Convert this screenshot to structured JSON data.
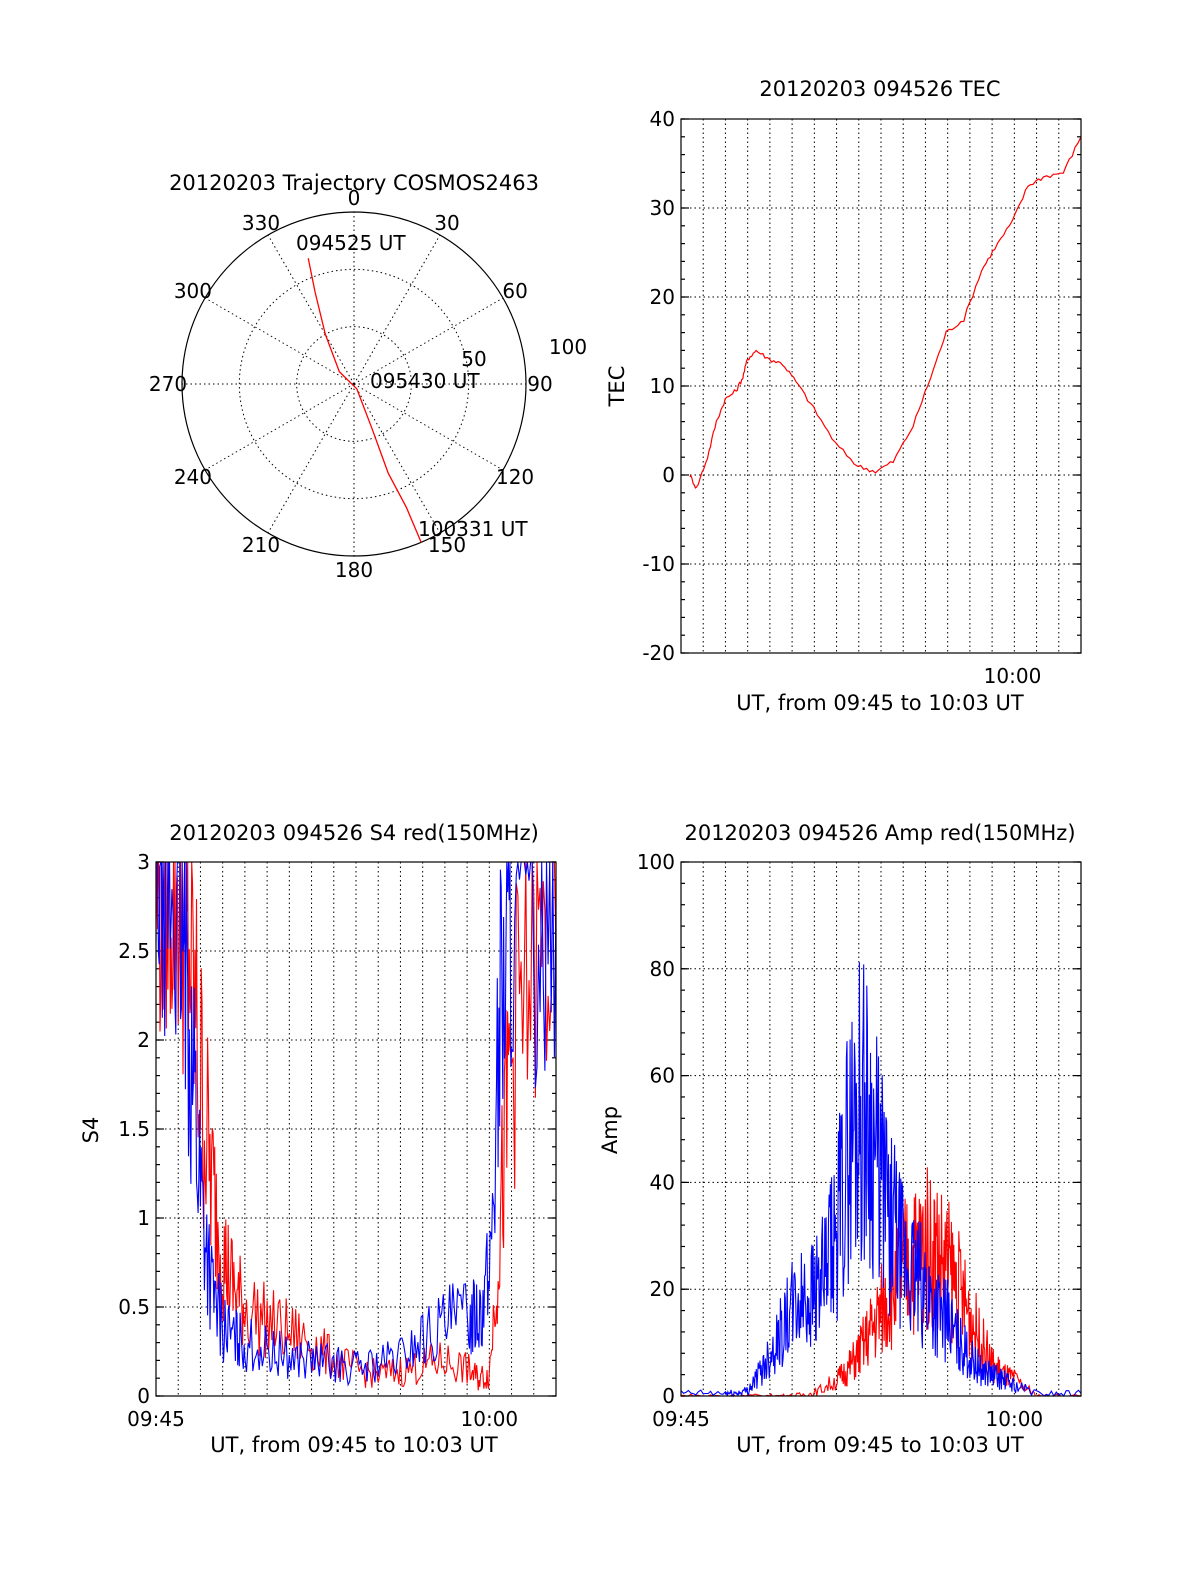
{
  "chart_data": [
    {
      "type": "polar",
      "title": "20120203 Trajectory COSMOS2463",
      "azimuth_labels": [
        "0",
        "30",
        "60",
        "90",
        "120",
        "150",
        "180",
        "210",
        "240",
        "270",
        "300",
        "330"
      ],
      "radial_labels": [
        "50",
        "100"
      ],
      "grid": true,
      "series": [
        {
          "color": "#ff0000",
          "points": [
            {
              "az": 340,
              "zen": 70
            },
            {
              "az": 337,
              "zen": 52
            },
            {
              "az": 330,
              "zen": 30
            },
            {
              "az": 310,
              "zen": 10
            },
            {
              "az": 150,
              "zen": 3
            },
            {
              "az": 158,
              "zen": 25
            },
            {
              "az": 159,
              "zen": 50
            },
            {
              "az": 157,
              "zen": 70
            },
            {
              "az": 157,
              "zen": 90
            }
          ]
        }
      ],
      "annotations": [
        "094525 UT",
        "095430 UT",
        "100331 UT"
      ]
    },
    {
      "type": "line",
      "title": "20120203 094526 TEC",
      "xlabel": "UT, from 09:45 to 10:03 UT",
      "ylabel": "TEC",
      "xlim": [
        0,
        18.1
      ],
      "ylim": [
        -20,
        40
      ],
      "yticks": [
        "-20",
        "-10",
        "0",
        "10",
        "20",
        "30",
        "40"
      ],
      "xtick_labels": [
        {
          "x": 15,
          "label": "10:00"
        }
      ],
      "grid": true,
      "series": [
        {
          "color": "#ff0000",
          "x": [
            0.4,
            0.7,
            1.2,
            1.6,
            2.0,
            2.5,
            2.8,
            3.0,
            3.4,
            4.0,
            4.6,
            5.2,
            6.0,
            7.0,
            8.0,
            8.8,
            9.6,
            10.5,
            11.3,
            12.0,
            12.8,
            13.6,
            14.2,
            15.0,
            15.7,
            16.4,
            17.3,
            18.1
          ],
          "y": [
            0,
            -1.5,
            2,
            6,
            8.5,
            9.5,
            11,
            13,
            14,
            13,
            12.5,
            10.5,
            7.5,
            3.5,
            1,
            0.4,
            1.5,
            5.5,
            11,
            16,
            17.5,
            23,
            25.5,
            28.5,
            32.5,
            33.5,
            34,
            38
          ]
        }
      ]
    },
    {
      "type": "line",
      "title": "20120203 094526 S4 red(150MHz)",
      "xlabel": "UT, from 09:45 to 10:03 UT",
      "ylabel": "S4",
      "xlim": [
        0,
        18
      ],
      "ylim": [
        0,
        3
      ],
      "yticks": [
        "0",
        "0.5",
        "1",
        "1.5",
        "2",
        "2.5",
        "3"
      ],
      "xtick_labels": [
        {
          "x": 0,
          "label": "09:45"
        },
        {
          "x": 15,
          "label": "10:00"
        }
      ],
      "grid": true,
      "series": [
        {
          "color": "#ff0000",
          "x": [
            0,
            0.5,
            1,
            1.5,
            2,
            2.5,
            3,
            3.5,
            4,
            5,
            6,
            7,
            8,
            9,
            10,
            11,
            12,
            13,
            14,
            14.5,
            15,
            15.5,
            16,
            17,
            18
          ],
          "y": [
            2.8,
            2.9,
            2.8,
            2.5,
            1.8,
            1.2,
            0.8,
            0.6,
            0.5,
            0.42,
            0.35,
            0.3,
            0.2,
            0.15,
            0.12,
            0.14,
            0.17,
            0.2,
            0.15,
            0.1,
            0.12,
            1.0,
            2.0,
            2.4,
            2.5
          ]
        },
        {
          "color": "#0000ff",
          "x": [
            0,
            0.5,
            1,
            1.5,
            2,
            2.5,
            3,
            3.5,
            4,
            5,
            6,
            7,
            8,
            9,
            10,
            11,
            12,
            13,
            14,
            14.5,
            15,
            15.5,
            16,
            17,
            18
          ],
          "y": [
            3.0,
            2.9,
            2.7,
            2.2,
            1.2,
            0.6,
            0.4,
            0.32,
            0.3,
            0.25,
            0.22,
            0.2,
            0.18,
            0.16,
            0.18,
            0.22,
            0.32,
            0.4,
            0.45,
            0.5,
            0.65,
            2.2,
            2.7,
            2.6,
            2.8
          ]
        }
      ]
    },
    {
      "type": "line",
      "title": "20120203 094526 Amp red(150MHz)",
      "xlabel": "UT, from 09:45 to 10:03 UT",
      "ylabel": "Amp",
      "xlim": [
        0,
        18
      ],
      "ylim": [
        0,
        100
      ],
      "yticks": [
        "0",
        "20",
        "40",
        "60",
        "80",
        "100"
      ],
      "xtick_labels": [
        {
          "x": 0,
          "label": "09:45"
        },
        {
          "x": 15,
          "label": "10:00"
        }
      ],
      "grid": true,
      "series": [
        {
          "color": "#ff0000",
          "x": [
            0,
            2,
            4,
            5,
            6,
            7,
            7.5,
            8,
            8.5,
            9,
            9.5,
            10,
            10.5,
            11,
            11.5,
            12,
            12.5,
            13,
            13.5,
            14,
            14.5,
            15,
            16,
            18
          ],
          "y": [
            0,
            0,
            0,
            0,
            0.5,
            3,
            5,
            8,
            12,
            16,
            20,
            24,
            26,
            28,
            27,
            24,
            20,
            15,
            10,
            6,
            4,
            3,
            0,
            0
          ]
        },
        {
          "color": "#0000ff",
          "x": [
            0,
            2,
            2.5,
            3,
            3.5,
            4,
            4.5,
            5,
            5.5,
            6,
            6.5,
            7,
            7.5,
            8,
            8.5,
            9,
            9.5,
            10,
            10.5,
            11,
            11.5,
            12,
            12.5,
            13,
            13.5,
            14,
            14.5,
            15,
            16,
            18
          ],
          "y": [
            0.5,
            0.5,
            0.5,
            1,
            4,
            8,
            12,
            16,
            18,
            20,
            22,
            30,
            45,
            55,
            50,
            40,
            32,
            25,
            22,
            20,
            16,
            14,
            10,
            7,
            5,
            4,
            3,
            2,
            0.5,
            0.5
          ]
        }
      ]
    }
  ]
}
